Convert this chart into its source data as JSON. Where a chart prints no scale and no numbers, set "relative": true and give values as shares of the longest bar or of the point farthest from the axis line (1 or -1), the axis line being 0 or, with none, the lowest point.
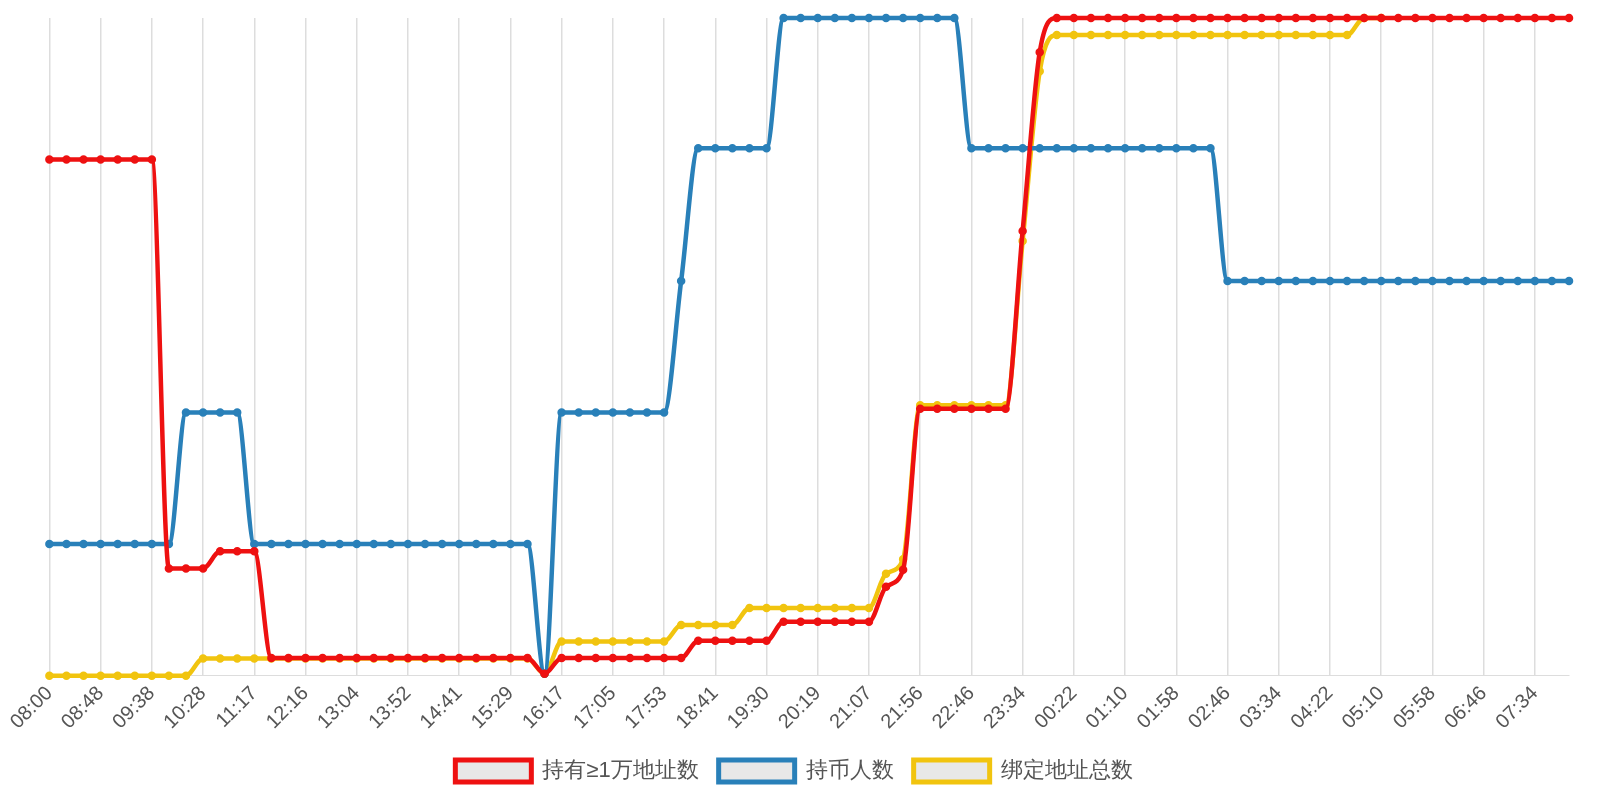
{
  "chart_data": {
    "type": "line",
    "relative": true,
    "grid": "x",
    "legend": "bottom",
    "marker": "circle",
    "line_style": "solid",
    "categories": [
      "08:00",
      null,
      null,
      "08:48",
      null,
      null,
      "09:38",
      null,
      null,
      "10:28",
      null,
      null,
      "11:17",
      null,
      null,
      "12:16",
      null,
      null,
      "13:04",
      null,
      null,
      "13:52",
      null,
      null,
      "14:41",
      null,
      null,
      "15:29",
      null,
      null,
      "16:17",
      null,
      null,
      "17:05",
      null,
      null,
      "17:53",
      null,
      null,
      "18:41",
      null,
      null,
      "19:30",
      null,
      null,
      "20:19",
      null,
      null,
      "21:07",
      null,
      null,
      "21:56",
      null,
      null,
      "22:46",
      null,
      null,
      "23:34",
      null,
      null,
      "00:22",
      null,
      null,
      "01:10",
      null,
      null,
      "01:58",
      null,
      null,
      "02:46",
      null,
      null,
      "03:34",
      null,
      null,
      "04:22",
      null,
      null,
      "05:10",
      null,
      null,
      "05:58",
      null,
      null,
      "06:46",
      null,
      null,
      "07:34",
      null,
      null
    ],
    "series": [
      {
        "name": "持有≥1万地址数",
        "color": "#ee1111",
        "values": [
          0.785,
          0.785,
          0.785,
          0.785,
          0.785,
          0.785,
          0.785,
          0.163,
          0.163,
          0.163,
          0.189,
          0.189,
          0.189,
          0.027,
          0.027,
          0.027,
          0.027,
          0.027,
          0.027,
          0.027,
          0.027,
          0.027,
          0.027,
          0.027,
          0.027,
          0.027,
          0.027,
          0.027,
          0.027,
          0.003,
          0.027,
          0.027,
          0.027,
          0.027,
          0.027,
          0.027,
          0.027,
          0.027,
          0.053,
          0.053,
          0.053,
          0.053,
          0.053,
          0.082,
          0.082,
          0.082,
          0.082,
          0.082,
          0.082,
          0.135,
          0.161,
          0.406,
          0.406,
          0.406,
          0.406,
          0.406,
          0.406,
          0.676,
          0.948,
          1,
          1,
          1,
          1,
          1,
          1,
          1,
          1,
          1,
          1,
          1,
          1,
          1,
          1,
          1,
          1,
          1,
          1,
          1,
          1,
          1,
          1,
          1,
          1,
          1,
          1,
          1,
          1,
          1,
          1,
          1
        ]
      },
      {
        "name": "持币人数",
        "color": "#2980b9",
        "values": [
          0.2,
          0.2,
          0.2,
          0.2,
          0.2,
          0.2,
          0.2,
          0.2,
          0.4,
          0.4,
          0.4,
          0.4,
          0.2,
          0.2,
          0.2,
          0.2,
          0.2,
          0.2,
          0.2,
          0.2,
          0.2,
          0.2,
          0.2,
          0.2,
          0.2,
          0.2,
          0.2,
          0.2,
          0.2,
          0.003,
          0.4,
          0.4,
          0.4,
          0.4,
          0.4,
          0.4,
          0.4,
          0.6,
          0.802,
          0.802,
          0.802,
          0.802,
          0.802,
          1,
          1,
          1,
          1,
          1,
          1,
          1,
          1,
          1,
          1,
          1,
          0.802,
          0.802,
          0.802,
          0.802,
          0.802,
          0.802,
          0.802,
          0.802,
          0.802,
          0.802,
          0.802,
          0.802,
          0.802,
          0.802,
          0.802,
          0.6,
          0.6,
          0.6,
          0.6,
          0.6,
          0.6,
          0.6,
          0.6,
          0.6,
          0.6,
          0.6,
          0.6,
          0.6,
          0.6,
          0.6,
          0.6,
          0.6,
          0.6,
          0.6,
          0.6,
          0.6
        ]
      },
      {
        "name": "绑定地址总数",
        "color": "#f1c40f",
        "values": [
          0,
          0,
          0,
          0,
          0,
          0,
          0,
          0,
          0,
          0.026,
          0.026,
          0.026,
          0.026,
          0.026,
          0.026,
          0.026,
          0.026,
          0.026,
          0.026,
          0.026,
          0.026,
          0.026,
          0.026,
          0.026,
          0.026,
          0.026,
          0.026,
          0.026,
          0.026,
          0.003,
          0.052,
          0.052,
          0.052,
          0.052,
          0.052,
          0.052,
          0.052,
          0.077,
          0.077,
          0.077,
          0.077,
          0.103,
          0.103,
          0.103,
          0.103,
          0.103,
          0.103,
          0.103,
          0.103,
          0.155,
          0.177,
          0.411,
          0.411,
          0.411,
          0.411,
          0.411,
          0.411,
          0.661,
          0.919,
          0.974,
          0.974,
          0.974,
          0.974,
          0.974,
          0.974,
          0.974,
          0.974,
          0.974,
          0.974,
          0.974,
          0.974,
          0.974,
          0.974,
          0.974,
          0.974,
          0.974,
          0.974,
          1,
          1,
          null,
          null,
          null,
          null,
          null,
          null,
          null,
          null,
          null,
          null,
          null
        ]
      }
    ]
  }
}
